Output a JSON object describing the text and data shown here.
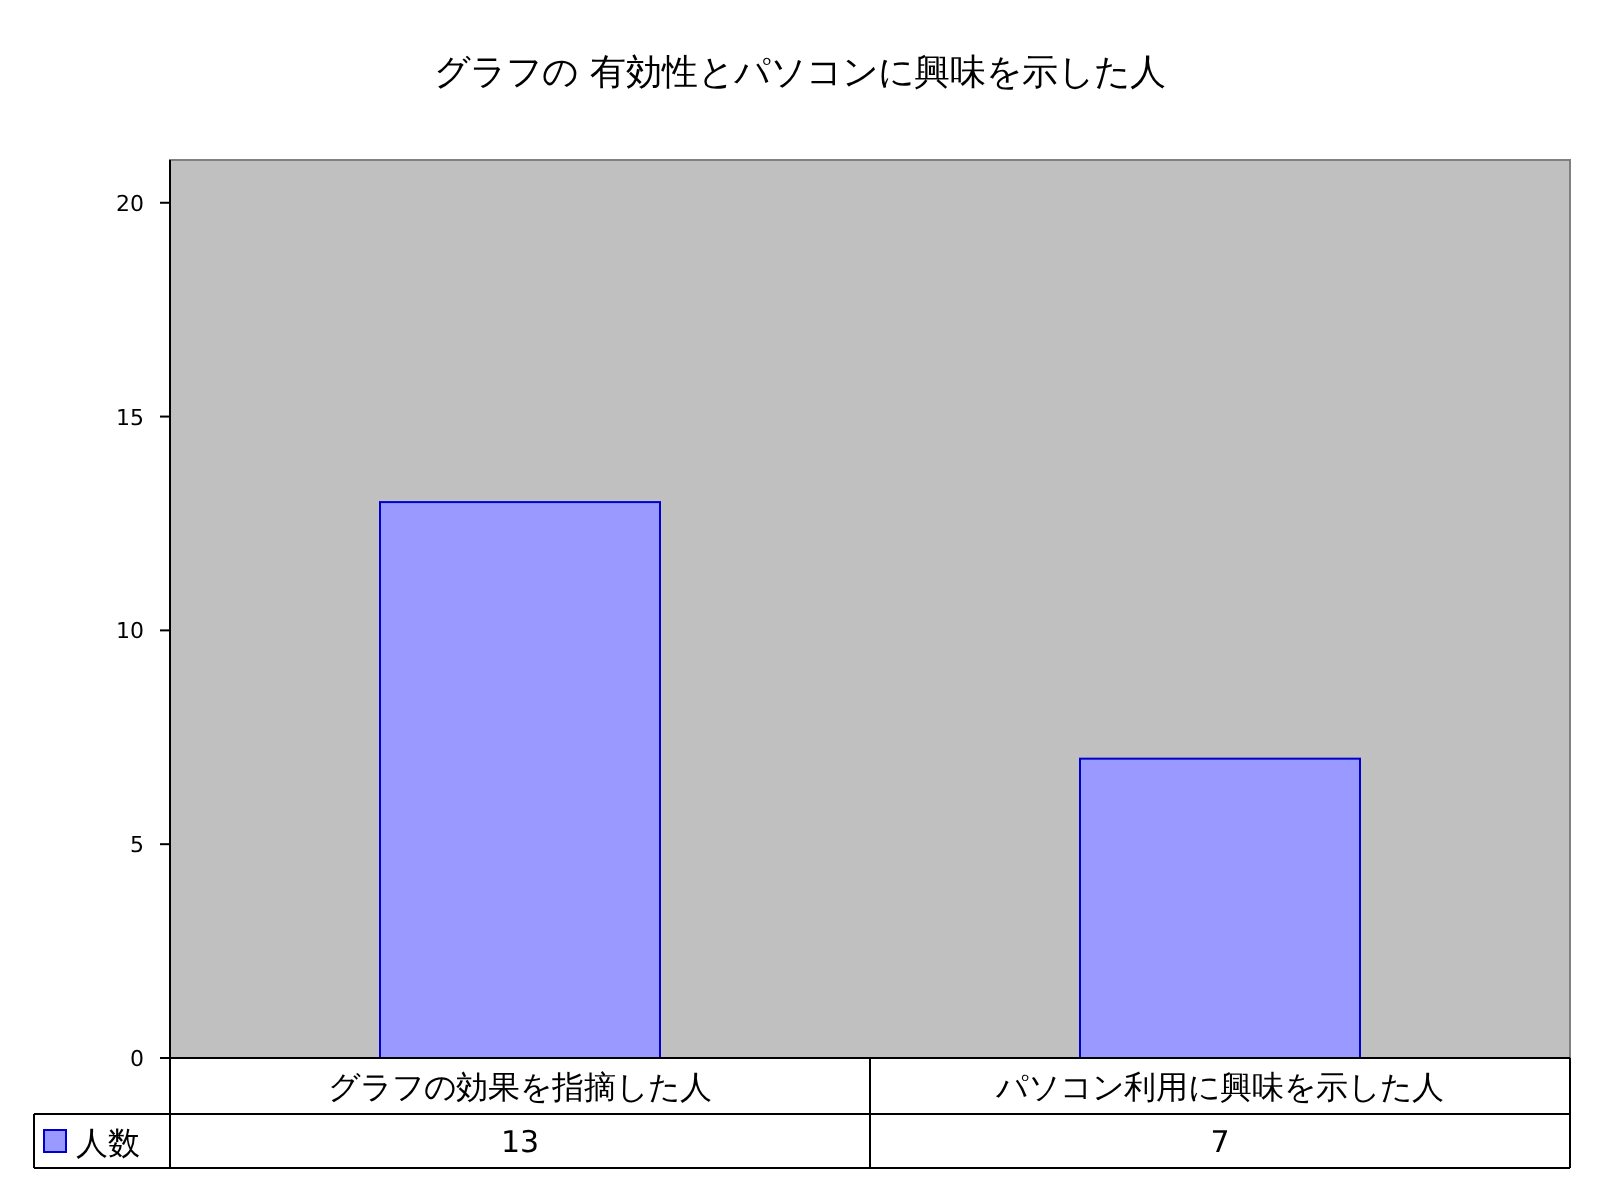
{
  "chart_data": {
    "type": "bar",
    "title": "グラフの 有効性とパソコンに興味を示した人",
    "categories": [
      "グラフの効果を指摘した人",
      "パソコン利用に興味を示した人"
    ],
    "series": [
      {
        "name": "人数",
        "color": "#9999ff",
        "values": [
          13,
          7
        ]
      }
    ],
    "ylim": [
      0,
      21
    ],
    "yticks": [
      0,
      5,
      10,
      15,
      20
    ],
    "data_labels": true,
    "legend": "bottom"
  }
}
